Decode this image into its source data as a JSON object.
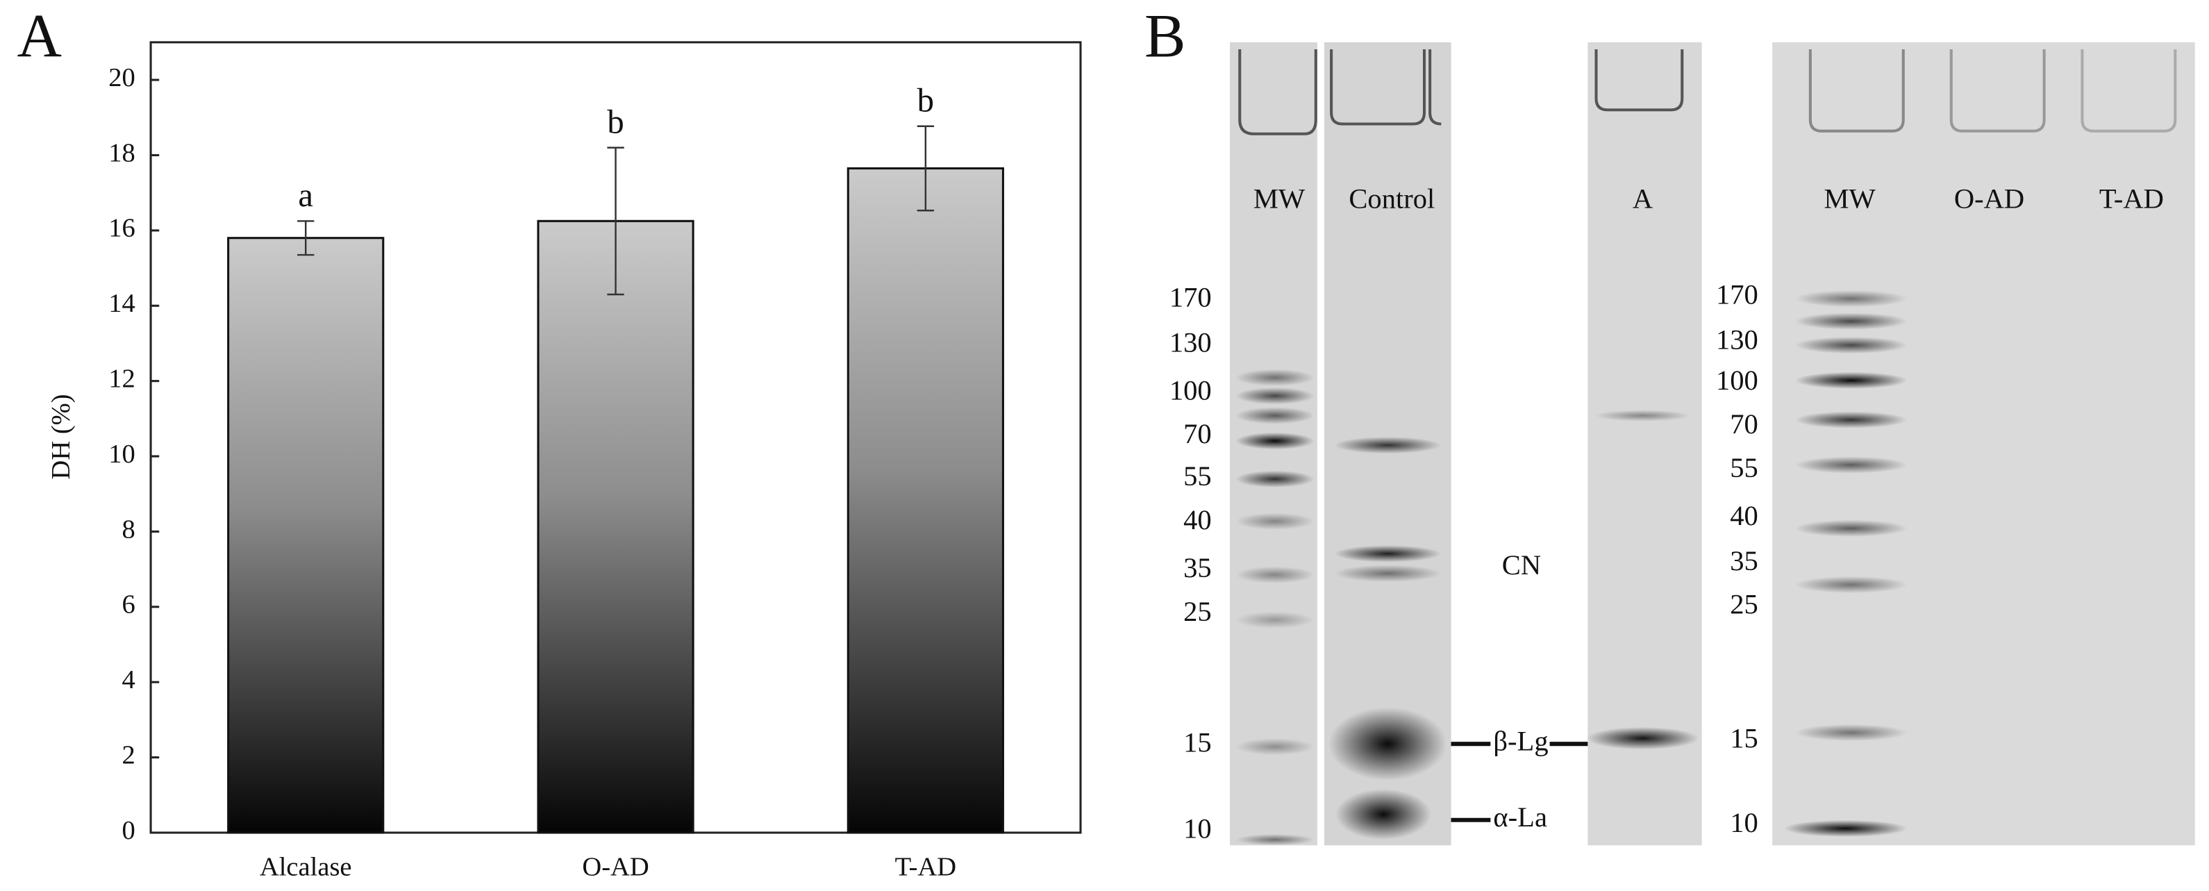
{
  "chart_data": {
    "type": "bar",
    "panel_label": "A",
    "ylabel": "DH (%)",
    "categories": [
      "Alcalase",
      "O-AD",
      "T-AD"
    ],
    "values": [
      15.8,
      16.25,
      17.65
    ],
    "errors": [
      0.45,
      1.95,
      1.12
    ],
    "annotations": [
      "a",
      "b",
      "b"
    ],
    "ylim": [
      0,
      21
    ],
    "yticks": [
      0,
      2,
      4,
      6,
      8,
      10,
      12,
      14,
      16,
      18,
      20
    ]
  },
  "gel": {
    "panel_label": "B",
    "lanes_left": [
      "MW",
      "Control",
      "A"
    ],
    "lanes_right": [
      "MW",
      "O-AD",
      "T-AD"
    ],
    "markers_left": [
      170,
      130,
      100,
      70,
      55,
      40,
      35,
      25,
      15,
      10
    ],
    "markers_right": [
      170,
      130,
      100,
      70,
      55,
      40,
      35,
      25,
      15,
      10
    ],
    "band_labels": [
      "CN",
      "β-Lg",
      "α-La"
    ]
  }
}
